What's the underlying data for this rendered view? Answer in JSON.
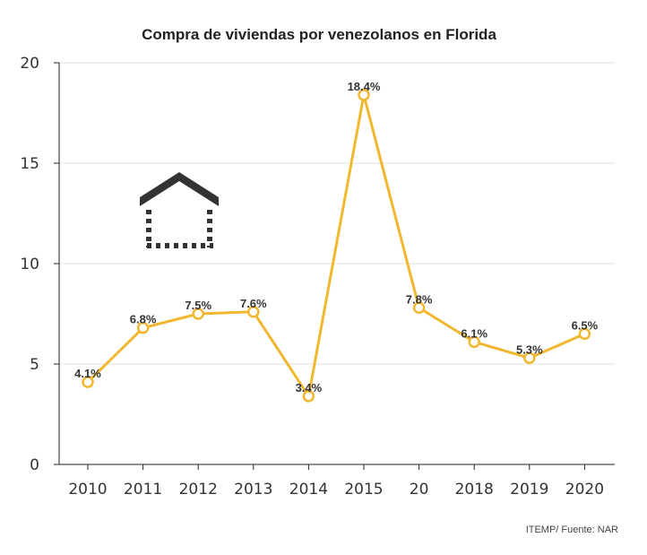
{
  "chart_data": {
    "type": "line",
    "title": "Compra de viviendas por venezolanos en Florida",
    "categories": [
      "2010",
      "2011",
      "2012",
      "2013",
      "2014",
      "2015",
      "20",
      "2018",
      "2019",
      "2020"
    ],
    "values": [
      4.1,
      6.8,
      7.5,
      7.6,
      3.4,
      18.4,
      7.8,
      6.1,
      5.3,
      6.5
    ],
    "data_labels": [
      "4.1%",
      "6.8%",
      "7.5%",
      "7.6%",
      "3.4%",
      "18.4%",
      "7.8%",
      "6.1%",
      "5.3%",
      "6.5%"
    ],
    "yticks": [
      "0",
      "5",
      "10",
      "15",
      "20"
    ],
    "ylim": [
      0,
      20
    ],
    "grid": true,
    "line_color": "#f0b72f",
    "source": "ITEMP/ Fuente: NAR",
    "icon": "house-icon"
  }
}
